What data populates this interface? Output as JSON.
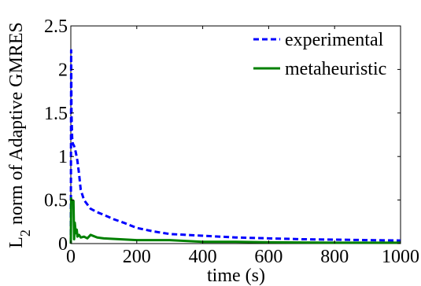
{
  "chart_data": {
    "type": "line",
    "xlabel": "time (s)",
    "ylabel_main": "L",
    "ylabel_sub": "2",
    "ylabel_rest": " norm of Adaptive GMRES",
    "xlim": [
      0,
      1000
    ],
    "ylim": [
      0,
      2.5
    ],
    "xticks": [
      0,
      200,
      400,
      600,
      800,
      1000
    ],
    "xtick_labels": [
      "0",
      "200",
      "400",
      "600",
      "800",
      "1000"
    ],
    "yticks": [
      0,
      0.5,
      1,
      1.5,
      2,
      2.5
    ],
    "ytick_labels": [
      "0",
      "0.5",
      "1",
      "1.5",
      "2",
      "2.5"
    ],
    "grid": false,
    "legend_position": "top-right",
    "series": [
      {
        "name": "experimental",
        "color": "#0000ff",
        "style": "dashed",
        "x": [
          0,
          1,
          2,
          4,
          6,
          10,
          15,
          20,
          25,
          30,
          40,
          50,
          60,
          80,
          100,
          130,
          160,
          200,
          250,
          300,
          350,
          400,
          500,
          600,
          700,
          800,
          900,
          1000
        ],
        "y": [
          0,
          2.22,
          1.5,
          1.22,
          1.15,
          1.12,
          1.05,
          0.95,
          0.8,
          0.62,
          0.5,
          0.45,
          0.4,
          0.36,
          0.33,
          0.28,
          0.24,
          0.18,
          0.14,
          0.11,
          0.1,
          0.09,
          0.07,
          0.06,
          0.05,
          0.045,
          0.04,
          0.035
        ]
      },
      {
        "name": "metaheuristic",
        "color": "#008000",
        "style": "solid",
        "x": [
          0,
          1,
          2,
          5,
          8,
          10,
          12,
          15,
          18,
          20,
          25,
          30,
          40,
          50,
          60,
          80,
          100,
          150,
          200,
          300,
          400,
          500,
          600,
          800,
          1000
        ],
        "y": [
          0,
          0.52,
          0.5,
          0.49,
          0.49,
          0.05,
          0.24,
          0.12,
          0.16,
          0.08,
          0.1,
          0.07,
          0.08,
          0.06,
          0.1,
          0.07,
          0.06,
          0.05,
          0.04,
          0.04,
          0.02,
          0.02,
          0.015,
          0.01,
          0.01
        ]
      }
    ]
  }
}
